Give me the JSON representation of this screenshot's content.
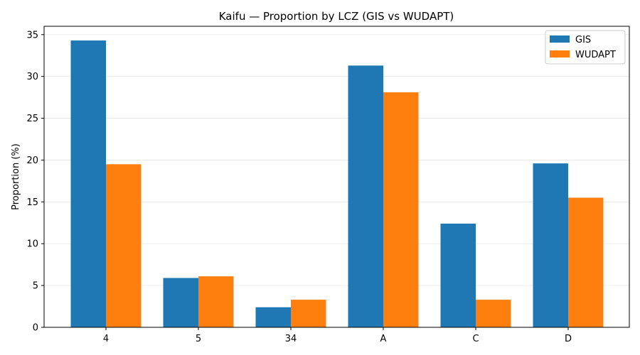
{
  "chart_data": {
    "type": "bar",
    "title": "Kaifu — Proportion by LCZ (GIS vs WUDAPT)",
    "xlabel": "",
    "ylabel": "Proportion (%)",
    "categories": [
      "4",
      "5",
      "34",
      "A",
      "C",
      "D"
    ],
    "series": [
      {
        "name": "GIS",
        "color": "#1f77b4",
        "values": [
          34.3,
          5.9,
          2.4,
          31.3,
          12.4,
          19.6
        ]
      },
      {
        "name": "WUDAPT",
        "color": "#ff7f0e",
        "values": [
          19.5,
          6.1,
          3.3,
          28.1,
          3.3,
          15.5
        ]
      }
    ],
    "ylim": [
      0,
      36
    ],
    "yticks": [
      "0",
      "5",
      "10",
      "15",
      "20",
      "25",
      "30",
      "35"
    ],
    "grid": "y",
    "legend_position": "top-right"
  }
}
